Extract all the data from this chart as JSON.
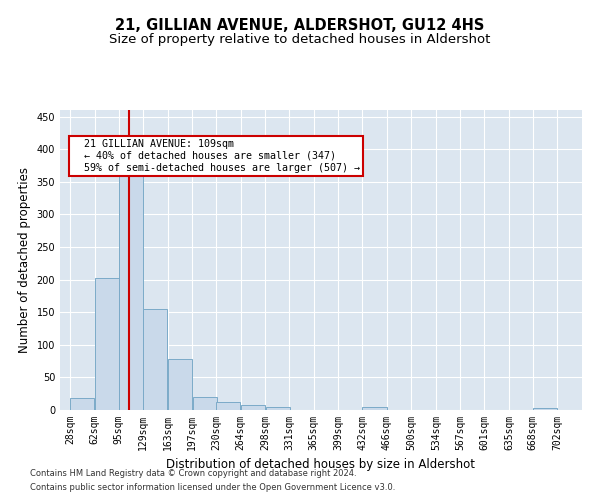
{
  "title": "21, GILLIAN AVENUE, ALDERSHOT, GU12 4HS",
  "subtitle": "Size of property relative to detached houses in Aldershot",
  "xlabel": "Distribution of detached houses by size in Aldershot",
  "ylabel": "Number of detached properties",
  "footnote1": "Contains HM Land Registry data © Crown copyright and database right 2024.",
  "footnote2": "Contains public sector information licensed under the Open Government Licence v3.0.",
  "bar_left_edges": [
    28,
    62,
    95,
    129,
    163,
    197,
    230,
    264,
    298,
    331,
    365,
    399,
    432,
    466,
    500,
    534,
    567,
    601,
    635,
    668
  ],
  "bar_heights": [
    18,
    202,
    365,
    155,
    78,
    20,
    13,
    7,
    5,
    0,
    0,
    0,
    4,
    0,
    0,
    0,
    0,
    0,
    0,
    3
  ],
  "bin_width": 34,
  "bar_color": "#c9d9ea",
  "bar_edge_color": "#7baac8",
  "property_value": 109,
  "red_line_color": "#cc0000",
  "annotation_text": "  21 GILLIAN AVENUE: 109sqm\n  ← 40% of detached houses are smaller (347)\n  59% of semi-detached houses are larger (507) →",
  "annotation_box_color": "#ffffff",
  "annotation_box_edge": "#cc0000",
  "ylim": [
    0,
    460
  ],
  "yticks": [
    0,
    50,
    100,
    150,
    200,
    250,
    300,
    350,
    400,
    450
  ],
  "xtick_labels": [
    "28sqm",
    "62sqm",
    "95sqm",
    "129sqm",
    "163sqm",
    "197sqm",
    "230sqm",
    "264sqm",
    "298sqm",
    "331sqm",
    "365sqm",
    "399sqm",
    "432sqm",
    "466sqm",
    "500sqm",
    "534sqm",
    "567sqm",
    "601sqm",
    "635sqm",
    "668sqm",
    "702sqm"
  ],
  "xtick_positions": [
    28,
    62,
    95,
    129,
    163,
    197,
    230,
    264,
    298,
    331,
    365,
    399,
    432,
    466,
    500,
    534,
    567,
    601,
    635,
    668,
    702
  ],
  "plot_bg_color": "#dce6f0",
  "title_fontsize": 10.5,
  "subtitle_fontsize": 9.5,
  "tick_fontsize": 7,
  "label_fontsize": 8.5,
  "footnote_fontsize": 6.0
}
